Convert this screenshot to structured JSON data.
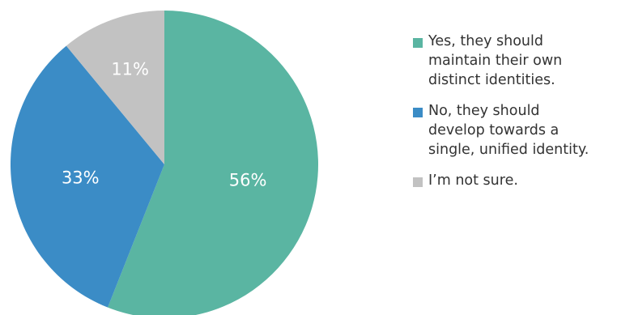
{
  "chart_data": {
    "type": "pie",
    "title": "",
    "slices": [
      {
        "label": "Yes, they should\nmaintain their own\ndistinct identities.",
        "value": 56,
        "display": "56%",
        "color": "#5ab5a2"
      },
      {
        "label": "No, they should\ndevelop towards a\nsingle, unified identity.",
        "value": 33,
        "display": "33%",
        "color": "#3b8cc6"
      },
      {
        "label": "I’m not sure.",
        "value": 11,
        "display": "11%",
        "color": "#c2c2c2"
      }
    ],
    "start_angle": "top (12 o'clock)",
    "direction": "clockwise",
    "legend_position": "right"
  }
}
